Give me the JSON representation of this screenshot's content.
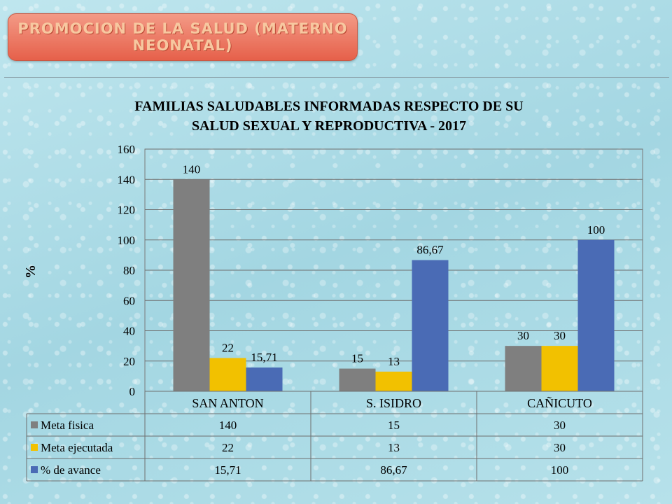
{
  "header": {
    "banner_line1": "PROMOCION DE LA SALUD (MATERNO",
    "banner_line2": "NEONATAL)"
  },
  "chart_data": {
    "type": "bar",
    "title_line1": "FAMILIAS  SALUDABLES INFORMADAS RESPECTO DE SU",
    "title_line2": "SALUD SEXUAL Y REPRODUCTIVA - 2017",
    "ylabel": "%",
    "xlabel": "",
    "ylim": [
      0,
      160
    ],
    "yticks": [
      "0",
      "20",
      "40",
      "60",
      "80",
      "100",
      "120",
      "140",
      "160"
    ],
    "grid": true,
    "legend": "data-table",
    "categories": [
      "SAN ANTON",
      "S. ISIDRO",
      "CAÑICUTO"
    ],
    "series": [
      {
        "name": "Meta fisica",
        "values": [
          140,
          15,
          30
        ],
        "labels": [
          "140",
          "15",
          "30"
        ],
        "color": "#7f7f7f"
      },
      {
        "name": "Meta ejecutada",
        "values": [
          22,
          13,
          30
        ],
        "labels": [
          "22",
          "13",
          "30"
        ],
        "color": "#f2c100"
      },
      {
        "name": "% de avance",
        "values": [
          15.71,
          86.67,
          100
        ],
        "labels": [
          "15,71",
          "86,67",
          "100"
        ],
        "color": "#4a6bb5"
      }
    ]
  }
}
